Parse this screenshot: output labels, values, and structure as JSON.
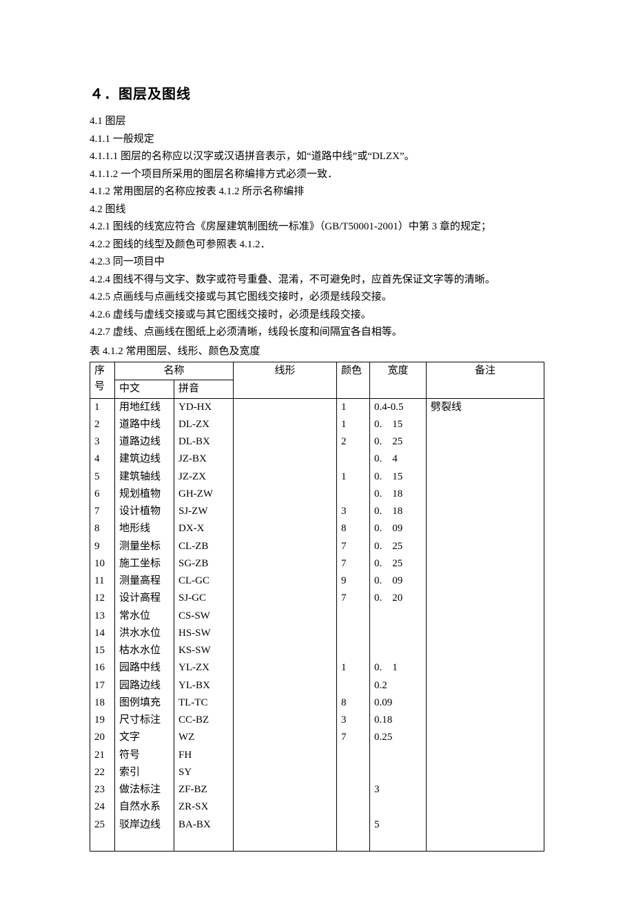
{
  "heading": "４．图层及图线",
  "paragraphs": [
    "4.1  图层",
    "4.1.1  一般规定",
    "4.1.1.1  图层的名称应以汉字或汉语拼音表示，如“道路中线”或“DLZX”。",
    "4.1.1.2  一个项目所采用的图层名称编排方式必须一致．",
    "4.1.2  常用图层的名称应按表 4.1.2 所示名称编排",
    "4.2  图线",
    "4.2.1  图线的线宽应符合《房屋建筑制图统一标准》（GB/T50001-2001）中第 3 章的规定；",
    "4.2.2  图线的线型及颜色可参照表 4.1.2．",
    "4.2.3  同一项目中",
    "4.2.4  图线不得与文字、数字或符号重叠、混淆，不可避免时，应首先保证文字等的清晰。",
    "4.2.5  点画线与点画线交接或与其它图线交接时，必须是线段交接。",
    "4.2.6  虚线与虚线交接或与其它图线交接时，必须是线段交接。",
    "4.2.7  虚线、点画线在图纸上必须清晰，线段长度和间隔宜各自相等。"
  ],
  "table_caption": "表 4.1.2  常用图层、线形、颜色及宽度",
  "table": {
    "head": {
      "idx": "序号",
      "name": "名称",
      "cn": "中文",
      "py": "拼音",
      "lx": "线形",
      "color": "颜色",
      "width": "宽度",
      "note": "备注"
    },
    "rows": [
      {
        "n": "1",
        "cn": "用地红线",
        "py": "YD-HX",
        "lx": "",
        "c": "1",
        "w": "0.4-0.5",
        "note": "劈裂线"
      },
      {
        "n": "2",
        "cn": "道路中线",
        "py": "DL-ZX",
        "lx": "",
        "c": "1",
        "w": "0.　15",
        "note": ""
      },
      {
        "n": "3",
        "cn": "道路边线",
        "py": "DL-BX",
        "lx": "",
        "c": "2",
        "w": "0.　25",
        "note": ""
      },
      {
        "n": "4",
        "cn": "建筑边线",
        "py": "JZ-BX",
        "lx": "",
        "c": "",
        "w": "0.　4",
        "note": ""
      },
      {
        "n": "5",
        "cn": "建筑轴线",
        "py": "JZ-ZX",
        "lx": "",
        "c": "1",
        "w": "0.　15",
        "note": ""
      },
      {
        "n": "6",
        "cn": "规划植物",
        "py": "GH-ZW",
        "lx": "",
        "c": "",
        "w": "0.　18",
        "note": ""
      },
      {
        "n": "7",
        "cn": "设计植物",
        "py": "SJ-ZW",
        "lx": "",
        "c": "3",
        "w": "0.　18",
        "note": ""
      },
      {
        "n": "8",
        "cn": "地形线",
        "py": "DX-X",
        "lx": "",
        "c": "8",
        "w": "0.　09",
        "note": ""
      },
      {
        "n": "9",
        "cn": "测量坐标",
        "py": "CL-ZB",
        "lx": "",
        "c": "7",
        "w": "0.　25",
        "note": ""
      },
      {
        "n": "10",
        "cn": "施工坐标",
        "py": "SG-ZB",
        "lx": "",
        "c": "7",
        "w": "0.　25",
        "note": ""
      },
      {
        "n": "11",
        "cn": "测量高程",
        "py": "CL-GC",
        "lx": "",
        "c": "9",
        "w": "0.　09",
        "note": ""
      },
      {
        "n": "12",
        "cn": "设计高程",
        "py": "SJ-GC",
        "lx": "",
        "c": "7",
        "w": "0.　20",
        "note": ""
      },
      {
        "n": "13",
        "cn": "常水位",
        "py": "CS-SW",
        "lx": "",
        "c": "",
        "w": "",
        "note": ""
      },
      {
        "n": "14",
        "cn": "洪水水位",
        "py": "HS-SW",
        "lx": "",
        "c": "",
        "w": "",
        "note": ""
      },
      {
        "n": "15",
        "cn": "枯水水位",
        "py": "KS-SW",
        "lx": "",
        "c": "",
        "w": "",
        "note": ""
      },
      {
        "n": "16",
        "cn": "园路中线",
        "py": "YL-ZX",
        "lx": "",
        "c": "1",
        "w": "0.　1",
        "note": ""
      },
      {
        "n": "17",
        "cn": "园路边线",
        "py": "YL-BX",
        "lx": "",
        "c": "",
        "w": "0.2",
        "note": ""
      },
      {
        "n": "18",
        "cn": "图例填充",
        "py": "TL-TC",
        "lx": "",
        "c": "8",
        "w": "0.09",
        "note": ""
      },
      {
        "n": "19",
        "cn": "尺寸标注",
        "py": "CC-BZ",
        "lx": "",
        "c": "3",
        "w": "0.18",
        "note": ""
      },
      {
        "n": "20",
        "cn": "文字",
        "py": "WZ",
        "lx": "",
        "c": "7",
        "w": "0.25",
        "note": ""
      },
      {
        "n": "21",
        "cn": "符号",
        "py": "FH",
        "lx": "",
        "c": "",
        "w": "",
        "note": ""
      },
      {
        "n": "22",
        "cn": "索引",
        "py": "SY",
        "lx": "",
        "c": "",
        "w": "",
        "note": ""
      },
      {
        "n": "23",
        "cn": "做法标注",
        "py": "ZF-BZ",
        "lx": "",
        "c": "",
        "w": "3",
        "note": ""
      },
      {
        "n": "24",
        "cn": "自然水系",
        "py": "ZR-SX",
        "lx": "",
        "c": "",
        "w": "",
        "note": ""
      },
      {
        "n": "25",
        "cn": "驳岸边线",
        "py": "BA-BX",
        "lx": "",
        "c": "",
        "w": "5",
        "note": ""
      }
    ]
  }
}
